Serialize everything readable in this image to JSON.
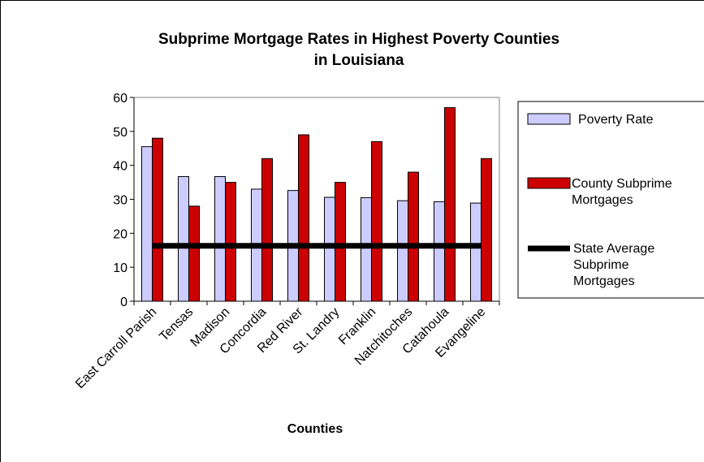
{
  "chart_data": {
    "type": "bar",
    "title_line1": "Subprime Mortgage Rates in Highest Poverty Counties",
    "title_line2": "in Louisiana",
    "xlabel": "Counties",
    "ylabel": "",
    "ylim": [
      0,
      60
    ],
    "yticks": [
      "0",
      "10",
      "20",
      "30",
      "40",
      "50",
      "60"
    ],
    "grid": false,
    "legend_position": "right",
    "categories": [
      "East Carroll Parish",
      "Tensas",
      "Madison",
      "Concordia",
      "Red River",
      "St. Landry",
      "Franklin",
      "Natchitoches",
      "Catahoula",
      "Evangeline"
    ],
    "series": [
      {
        "name": "Poverty Rate",
        "kind": "bar",
        "color": "#ccccff",
        "values": [
          45.5,
          36.7,
          36.7,
          33,
          32.6,
          30.6,
          30.5,
          29.6,
          29.3,
          28.9
        ]
      },
      {
        "name": "County Subprime Mortgages",
        "kind": "bar",
        "color": "#cc0000",
        "values": [
          48,
          28,
          35,
          42,
          49,
          35,
          47,
          38,
          57,
          42
        ]
      },
      {
        "name": "State Average Subprime Mortgages",
        "kind": "line",
        "color": "#000000",
        "value": 16.3
      }
    ],
    "legend": {
      "item1_line1": "Poverty Rate",
      "item2_line1": "County Subprime",
      "item2_line2": "Mortgages",
      "item3_line1": "State Average",
      "item3_line2": "Subprime",
      "item3_line3": "Mortgages"
    }
  }
}
